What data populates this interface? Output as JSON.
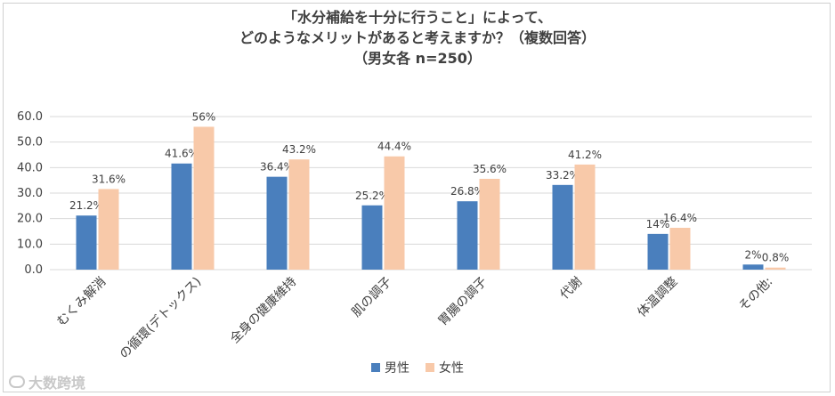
{
  "colors": {
    "male": "#4a7fbd",
    "female": "#f8c9a9",
    "grid": "#d9d9d9",
    "text": "#404040"
  },
  "watermark": "大数跨境",
  "chart_data": {
    "type": "bar",
    "title": [
      "「水分補給を十分に行うこと」によって、",
      "どのようなメリットがあると考えますか？（複数回答）",
      "（男女各 n=250）"
    ],
    "categories": [
      "むくみ解消",
      "体内の循環(デトックス)",
      "全身の健康維持",
      "肌の調子",
      "胃腸の調子",
      "代謝",
      "体温調整",
      "その他:"
    ],
    "category_labels_visible": [
      "むくみ解消",
      "の循環(デトックス)",
      "全身の健康維持",
      "肌の調子",
      "胃腸の調子",
      "代謝",
      "体温調整",
      "その他:"
    ],
    "series": [
      {
        "name": "男性",
        "values": [
          21.2,
          41.6,
          36.4,
          25.2,
          26.8,
          33.2,
          14,
          2
        ],
        "labels": [
          "21.2%",
          "41.6%",
          "36.4%",
          "25.2%",
          "26.8%",
          "33.2%",
          "14%",
          "2%"
        ]
      },
      {
        "name": "女性",
        "values": [
          31.6,
          56,
          43.2,
          44.4,
          35.6,
          41.2,
          16.4,
          0.8
        ],
        "labels": [
          "31.6%",
          "56%",
          "43.2%",
          "44.4%",
          "35.6%",
          "41.2%",
          "16.4%",
          "0.8%"
        ]
      }
    ],
    "yticks": [
      "0.0",
      "10.0",
      "20.0",
      "30.0",
      "40.0",
      "50.0",
      "60.0"
    ],
    "ylim": [
      0,
      60
    ],
    "xlabel": "",
    "ylabel": "",
    "legend": "bottom-center",
    "grid": true
  }
}
